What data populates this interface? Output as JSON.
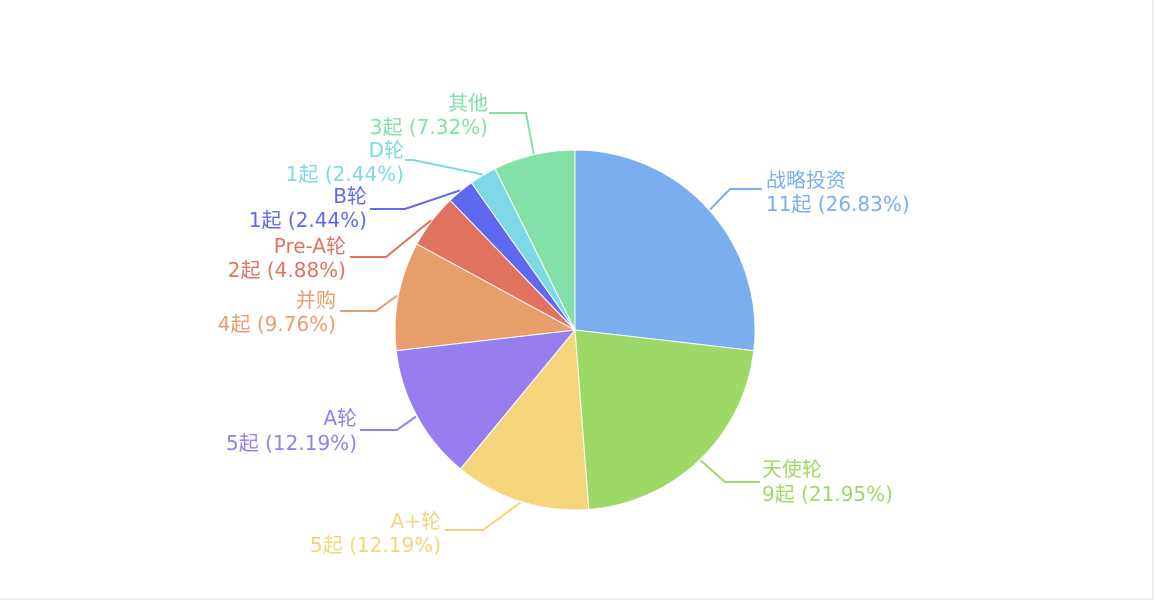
{
  "chart_data": {
    "type": "pie",
    "unit": "起",
    "slices": [
      {
        "name": "战略投资",
        "count": 11,
        "value_text": "11起 (26.83%)",
        "percent": 26.83,
        "color": "#7aaeef"
      },
      {
        "name": "天使轮",
        "count": 9,
        "value_text": "9起 (21.95%)",
        "percent": 21.95,
        "color": "#9dd967"
      },
      {
        "name": "A+轮",
        "count": 5,
        "value_text": "5起 (12.19%)",
        "percent": 12.19,
        "color": "#f4d57b"
      },
      {
        "name": "A轮",
        "count": 5,
        "value_text": "5起 (12.19%)",
        "percent": 12.19,
        "color": "#977ded"
      },
      {
        "name": "并购",
        "count": 4,
        "value_text": "4起 (9.76%)",
        "percent": 9.76,
        "color": "#e89e6a"
      },
      {
        "name": "Pre-A轮",
        "count": 2,
        "value_text": "2起 (4.88%)",
        "percent": 4.88,
        "color": "#e0735e"
      },
      {
        "name": "B轮",
        "count": 1,
        "value_text": "1起 (2.44%)",
        "percent": 2.44,
        "color": "#6068f0"
      },
      {
        "name": "D轮",
        "count": 1,
        "value_text": "1起 (2.44%)",
        "percent": 2.44,
        "color": "#7ed8e5"
      },
      {
        "name": "其他",
        "count": 3,
        "value_text": "3起 (7.32%)",
        "percent": 7.32,
        "color": "#83e0a6"
      }
    ]
  }
}
